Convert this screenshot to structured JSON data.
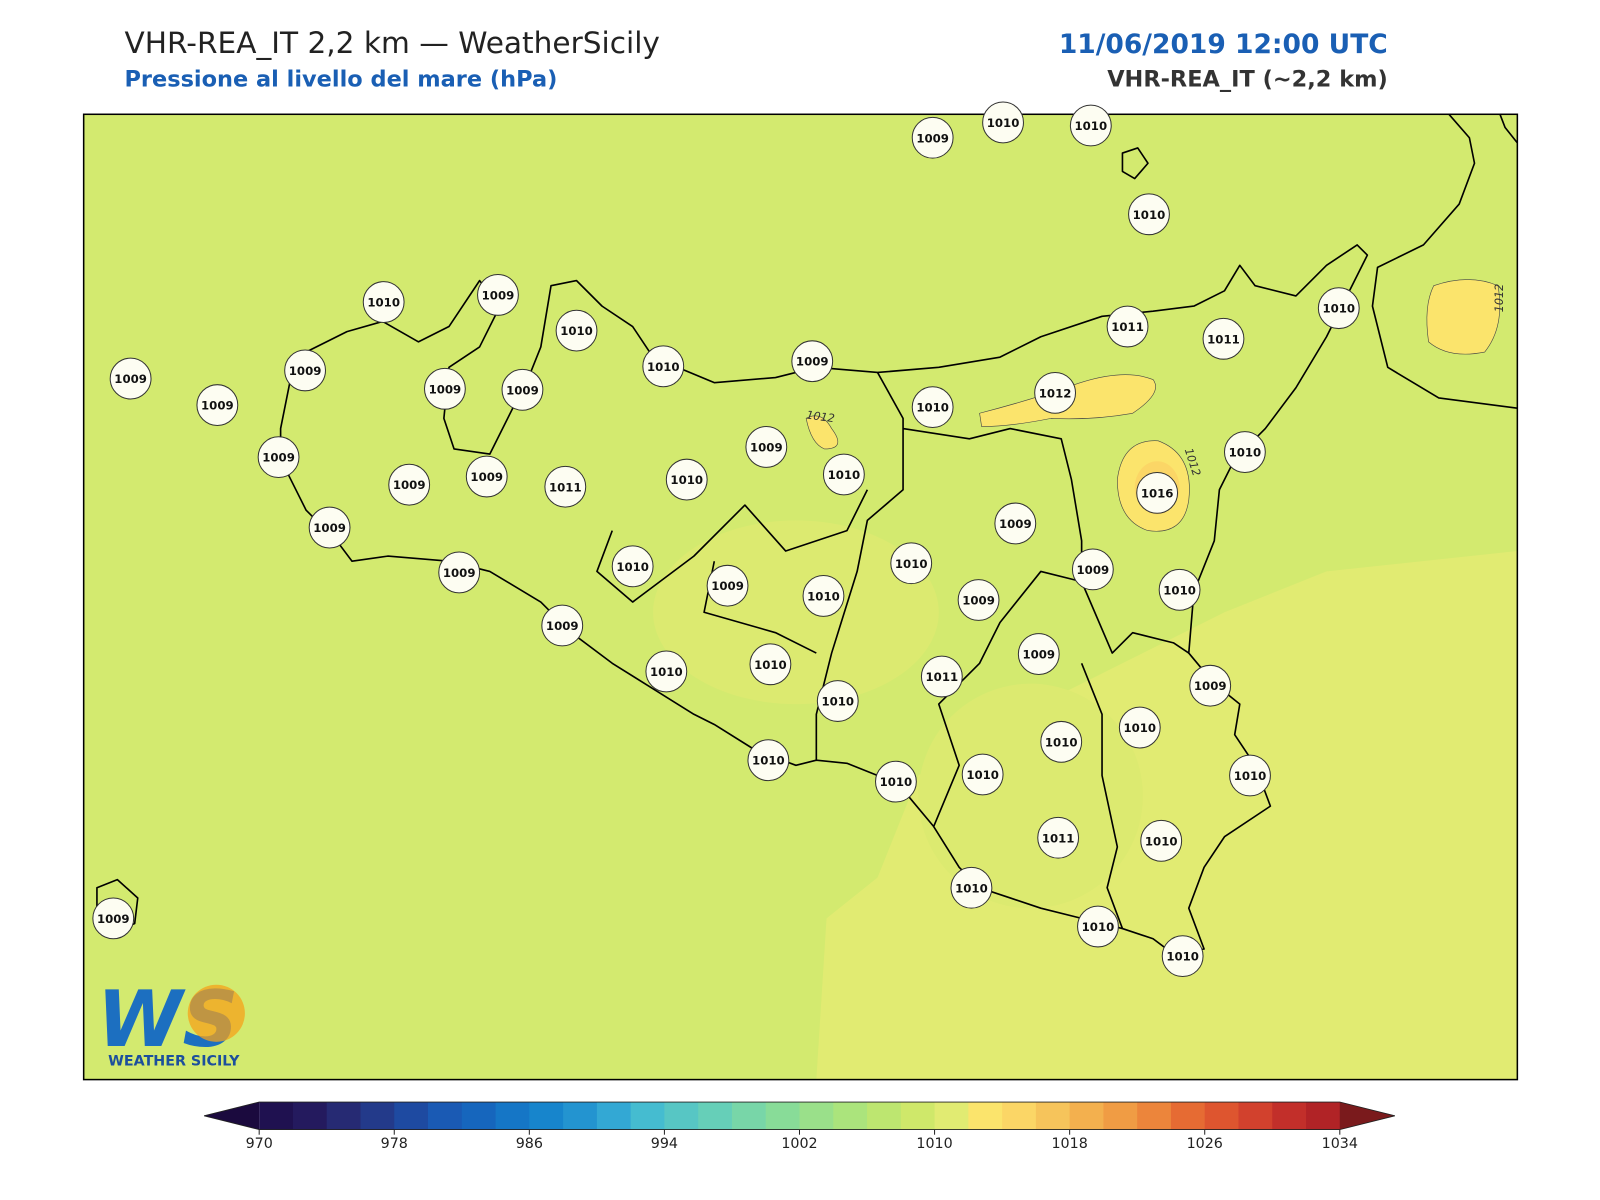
{
  "header": {
    "title": "VHR-REA_IT 2,2 km — WeatherSicily",
    "subtitle": "Pressione al livello del mare (hPa)",
    "datetime": "11/06/2019 12:00 UTC",
    "model": "VHR-REA_IT (~2,2 km)"
  },
  "stations": [
    1009,
    1010,
    1010,
    1010,
    1010,
    1009,
    1010,
    1009,
    1009,
    1009,
    1009,
    1009,
    1010,
    1009,
    1011,
    1011,
    1010,
    1010,
    1012,
    1009,
    1009,
    1009,
    1011,
    1010,
    1009,
    1010,
    1010,
    1016,
    1009,
    1009,
    1009,
    1010,
    1009,
    1010,
    1010,
    1009,
    1009,
    1010,
    1009,
    1010,
    1010,
    1009,
    1011,
    1010,
    1009,
    1010,
    1010,
    1010,
    1010,
    1010,
    1010,
    1011,
    1010,
    1010,
    1009,
    1010,
    1010
  ],
  "contour_labels": [
    1012,
    1012,
    1012
  ],
  "logo": {
    "mark": "WS",
    "name": "WEATHER SICILY"
  },
  "colorbar": {
    "ticks": [
      970,
      978,
      986,
      994,
      1002,
      1010,
      1018,
      1026,
      1034
    ],
    "colors": [
      "#1f1150",
      "#241a5e",
      "#262a73",
      "#233a8a",
      "#1e4aa1",
      "#1a5ab4",
      "#1666bd",
      "#1576c6",
      "#1785cc",
      "#2394d0",
      "#33a8d4",
      "#45bcd0",
      "#57c6c4",
      "#66cfb8",
      "#78d6a8",
      "#88dc98",
      "#9ae08a",
      "#abe47c",
      "#bde670",
      "#cfe86a",
      "#e1eb72",
      "#fbe46c",
      "#fbd666",
      "#f6c45b",
      "#f3b04e",
      "#f09c44",
      "#ec853b",
      "#e66b33",
      "#de552f",
      "#d2412d",
      "#c22f2a",
      "#b12326"
    ],
    "under": "#1b0a3e",
    "over": "#7a1a1c"
  }
}
